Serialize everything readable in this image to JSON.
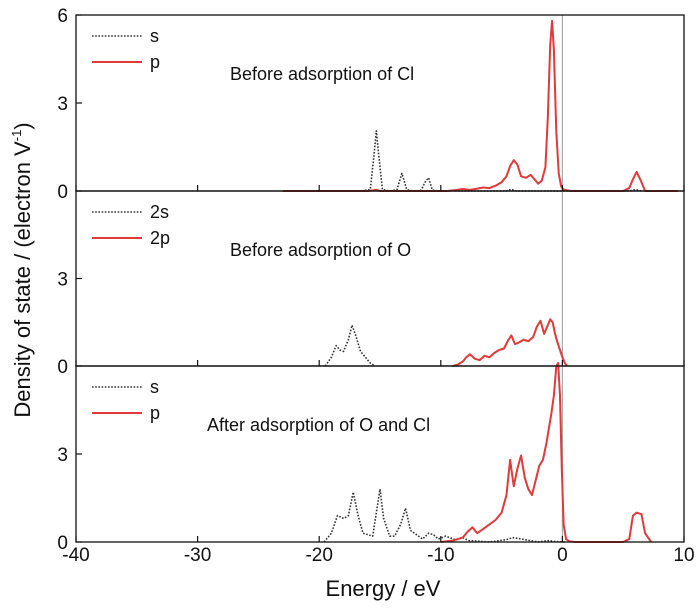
{
  "chart_data": {
    "type": "line",
    "xlabel": "Energy / eV",
    "ylabel_main": "Density of state / (electron V",
    "ylabel_sup": "-1",
    "ylabel_close": ")",
    "xlim": [
      -40,
      10
    ],
    "x_ticks": [
      -40,
      -30,
      -20,
      -10,
      0,
      10
    ],
    "x_tick_labels": [
      "-40",
      "-30",
      "-20",
      "-10",
      "0",
      "10"
    ],
    "fermi_line_x": 0,
    "colors": {
      "s": "#333333",
      "p": "#e03a3a",
      "axis": "#111111",
      "fermi": "#aaaaaa"
    },
    "panels": [
      {
        "annotation": "Before adsorption of Cl",
        "ylim": [
          0,
          6
        ],
        "y_ticks": [
          0,
          3,
          6
        ],
        "y_tick_labels": [
          "0",
          "3",
          "6"
        ],
        "series": [
          {
            "name": "s",
            "style": "dotted",
            "x": [
              -16.5,
              -15.8,
              -15.5,
              -15.3,
              -15.1,
              -14.8,
              -14.2,
              -13.6,
              -13.2,
              -12.8,
              -12.4,
              -12.0,
              -11.6,
              -11.3,
              -11.0,
              -10.7,
              -10.3,
              -9.0,
              -8.5,
              -4.6,
              -4.2,
              -3.8,
              -3.0,
              -2.5,
              5.5,
              6.0,
              6.5
            ],
            "y": [
              0,
              0.05,
              1.2,
              2.05,
              1.2,
              0.05,
              0,
              0.05,
              0.6,
              0.05,
              0,
              0,
              0.03,
              0.3,
              0.45,
              0.03,
              0,
              0.01,
              0,
              0,
              0.06,
              0,
              0,
              0,
              0,
              0.05,
              0
            ]
          },
          {
            "name": "p",
            "style": "solid",
            "x": [
              -23,
              -16,
              -15.3,
              -15.0,
              -14.6,
              -9.5,
              -8.8,
              -8.2,
              -7.6,
              -7.0,
              -6.5,
              -6.0,
              -5.5,
              -5.0,
              -4.6,
              -4.3,
              -4.0,
              -3.7,
              -3.4,
              -3.0,
              -2.6,
              -2.3,
              -2.0,
              -1.7,
              -1.4,
              -1.2,
              -1.0,
              -0.85,
              -0.7,
              -0.5,
              -0.3,
              -0.1,
              0.1,
              0.4,
              0.7,
              1.0,
              5.0,
              5.5,
              5.8,
              6.1,
              6.4,
              6.8,
              9.5
            ],
            "y": [
              0,
              0,
              0.04,
              0,
              0,
              0,
              0.03,
              0.07,
              0.04,
              0.08,
              0.12,
              0.1,
              0.18,
              0.3,
              0.5,
              0.85,
              1.05,
              0.9,
              0.5,
              0.45,
              0.55,
              0.4,
              0.25,
              0.35,
              0.8,
              2.5,
              5.0,
              5.8,
              4.8,
              2.0,
              0.6,
              0.15,
              0.05,
              0.02,
              0,
              0,
              0,
              0.1,
              0.4,
              0.65,
              0.4,
              0,
              0
            ]
          }
        ]
      },
      {
        "annotation": "Before adsorption of O",
        "ylim": [
          0,
          6
        ],
        "y_ticks": [
          0,
          3
        ],
        "y_tick_labels": [
          "0",
          "3"
        ],
        "series": [
          {
            "name": "2s",
            "style": "dotted",
            "x": [
              -19.5,
              -19.0,
              -18.6,
              -18.3,
              -18.0,
              -17.6,
              -17.3,
              -17.0,
              -16.6,
              -16.2,
              -15.8,
              -15.4
            ],
            "y": [
              0,
              0.3,
              0.7,
              0.55,
              0.5,
              0.9,
              1.4,
              1.05,
              0.5,
              0.3,
              0.1,
              0
            ]
          },
          {
            "name": "2p",
            "style": "solid",
            "x": [
              -9.0,
              -8.6,
              -8.2,
              -7.9,
              -7.6,
              -7.2,
              -6.8,
              -6.4,
              -6.0,
              -5.6,
              -5.2,
              -4.8,
              -4.5,
              -4.2,
              -3.9,
              -3.6,
              -3.2,
              -2.8,
              -2.4,
              -2.1,
              -1.8,
              -1.5,
              -1.2,
              -1.0,
              -0.8,
              -0.6,
              -0.4,
              -0.2,
              0,
              0.2,
              0.4
            ],
            "y": [
              0,
              0.05,
              0.15,
              0.3,
              0.4,
              0.25,
              0.2,
              0.35,
              0.3,
              0.45,
              0.55,
              0.6,
              0.85,
              1.05,
              0.75,
              0.8,
              0.9,
              0.85,
              1.0,
              1.35,
              1.55,
              1.1,
              1.4,
              1.6,
              1.5,
              1.1,
              0.8,
              0.55,
              0.3,
              0.1,
              0
            ]
          }
        ]
      },
      {
        "annotation": "After adsorption of O and Cl",
        "ylim": [
          0,
          6
        ],
        "y_ticks": [
          0,
          3
        ],
        "y_tick_labels": [
          "0",
          "3"
        ],
        "series": [
          {
            "name": "s",
            "style": "dotted",
            "x": [
              -19.6,
              -19.0,
              -18.5,
              -18.0,
              -17.6,
              -17.2,
              -16.8,
              -16.4,
              -16.0,
              -15.6,
              -15.3,
              -15.0,
              -14.7,
              -14.2,
              -13.8,
              -13.3,
              -12.9,
              -12.5,
              -11.5,
              -11.0,
              -10.6,
              -10.2,
              -9.6,
              -8.8,
              -8.2,
              -7.7,
              -6.0,
              -4.6,
              -4.1,
              -3.6,
              -2.0,
              -1.1,
              -0.7,
              0.2
            ],
            "y": [
              0,
              0.3,
              0.9,
              0.8,
              0.9,
              1.7,
              0.9,
              0.3,
              0.25,
              0.2,
              1.0,
              1.8,
              0.8,
              0.2,
              0.2,
              0.6,
              1.15,
              0.4,
              0.1,
              0.3,
              0.25,
              0.1,
              0.2,
              0.08,
              0.15,
              0.05,
              0,
              0.08,
              0.15,
              0.12,
              0,
              0.05,
              0.02,
              0
            ]
          },
          {
            "name": "p",
            "style": "solid",
            "x": [
              -10.0,
              -9.0,
              -8.2,
              -7.8,
              -7.4,
              -7.0,
              -6.5,
              -6.0,
              -5.5,
              -5.0,
              -4.6,
              -4.3,
              -4.0,
              -3.7,
              -3.4,
              -3.1,
              -2.8,
              -2.5,
              -2.2,
              -1.9,
              -1.6,
              -1.3,
              -1.1,
              -0.9,
              -0.7,
              -0.5,
              -0.35,
              -0.2,
              -0.05,
              0.1,
              0.3,
              0.6,
              1.0,
              5.0,
              5.5,
              5.8,
              6.1,
              6.5,
              6.8,
              7.3
            ],
            "y": [
              0,
              0.05,
              0.15,
              0.35,
              0.5,
              0.3,
              0.45,
              0.6,
              0.75,
              1.0,
              1.6,
              2.8,
              1.9,
              2.5,
              2.95,
              2.2,
              1.8,
              1.6,
              2.1,
              2.6,
              2.8,
              3.4,
              3.9,
              4.4,
              5.0,
              6.0,
              6.1,
              5.0,
              2.5,
              0.6,
              0.1,
              0.02,
              0,
              0,
              0.1,
              0.9,
              1.0,
              0.95,
              0.3,
              0
            ]
          }
        ]
      }
    ]
  }
}
